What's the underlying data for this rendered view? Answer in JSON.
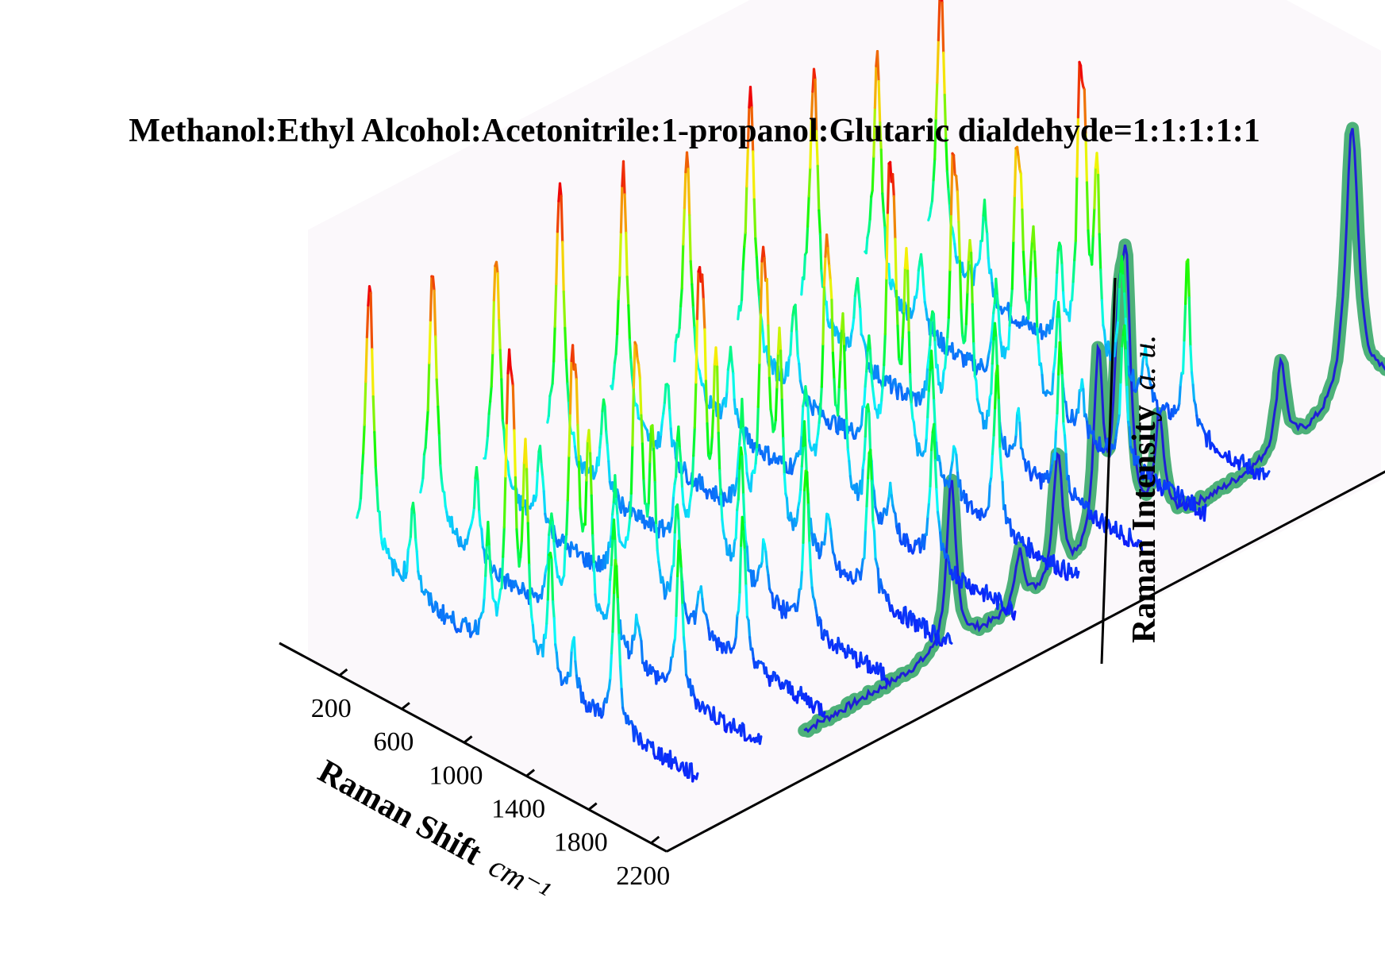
{
  "chart_data": {
    "type": "line",
    "title": "Methanol:Ethyl Alcohol:Acetonitrile:1-propanol:Glutaric dialdehyde=1:1:1:1:1",
    "x_axis": {
      "label": "Raman Shift",
      "unit": "cm⁻¹",
      "ticks": [
        "200",
        "600",
        "1000",
        "1400",
        "1800",
        "2200"
      ],
      "range": [
        0,
        2300
      ]
    },
    "z_axis": {
      "label": "Raman Intensity",
      "unit": "a. u."
    },
    "grid": false,
    "legend": "none",
    "colormap": "rainbow",
    "background_color": "#fbf8fb",
    "projected_average_color": "#1f1fd6",
    "projected_band_color": "#3aa86a",
    "series_count": 10,
    "peaks": [
      {
        "x": 140,
        "rel_intensity": 1.0
      },
      {
        "x": 420,
        "rel_intensity": 0.33
      },
      {
        "x": 900,
        "rel_intensity": 0.38
      },
      {
        "x": 1030,
        "rel_intensity": 0.82
      },
      {
        "x": 1060,
        "rel_intensity": 0.62
      },
      {
        "x": 1140,
        "rel_intensity": 0.72
      },
      {
        "x": 1300,
        "rel_intensity": 0.48
      },
      {
        "x": 1450,
        "rel_intensity": 0.2
      },
      {
        "x": 1720,
        "rel_intensity": 0.6
      }
    ]
  }
}
